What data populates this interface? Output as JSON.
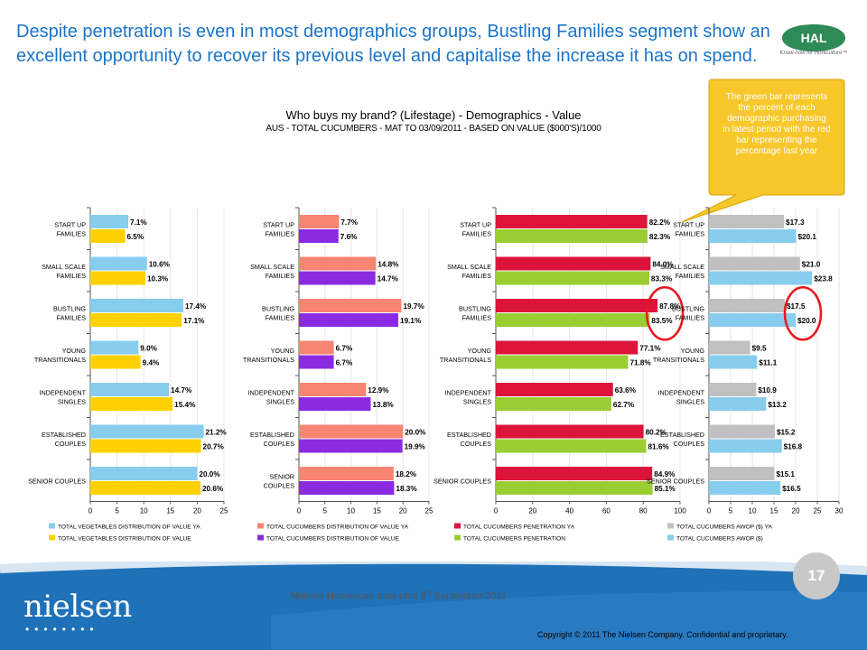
{
  "headline": "Despite penetration is even in most demographics groups, Bustling Families segment show an excellent opportunity to recover its previous level and capitalise the increase it has on spend.",
  "logo": {
    "text": "HAL",
    "tagline": "Know-how for Horticulture™",
    "color": "#2e8a57"
  },
  "callout": "The green bar represents the percent of each demographic purchasing in latest period with the red bar representing the percentage last year",
  "footer": {
    "source_note": "Nielsen Homescan data until 3",
    "source_sup": "rd",
    "source_tail": " September 2011",
    "page_number": "17",
    "brand": "nielsen",
    "copyright": "Copyright © 2011 The Nielsen Company. Confidential and proprietary."
  },
  "colors": {
    "footer_blue": "#1f71b8",
    "headline_blue": "#1a74c8",
    "callout_yellow": "#f7c72b",
    "highlight_circle": "#e8161d"
  },
  "chart_data": {
    "title": "Who buys my brand? (Lifestage) - Demographics - Value",
    "subtitle": "AUS - TOTAL CUCUMBERS - MAT TO 03/09/2011 - BASED ON VALUE ($000'S)/1000",
    "panels": [
      {
        "type": "bar",
        "orientation": "horizontal",
        "categories": [
          "START UP FAMILIES",
          "SMALL SCALE FAMILIES",
          "BUSTLING FAMILIES",
          "YOUNG TRANSITIONALS",
          "INDEPENDENT SINGLES",
          "ESTABLISHED COUPLES",
          "SENIOR COUPLES"
        ],
        "xlim": [
          0,
          25
        ],
        "ticks": [
          0,
          5,
          10,
          15,
          20,
          25
        ],
        "label_format": "{v}%",
        "decimals": 1,
        "series": [
          {
            "name": "TOTAL VEGETABLES DISTRIBUTION OF VALUE YA",
            "color": "#87cdee",
            "values": [
              7.1,
              10.6,
              17.4,
              9.0,
              14.7,
              21.2,
              20.0
            ]
          },
          {
            "name": "TOTAL VEGETABLES DISTRIBUTION OF VALUE",
            "color": "#ffd100",
            "values": [
              6.5,
              10.3,
              17.1,
              9.4,
              15.4,
              20.7,
              20.6
            ]
          }
        ]
      },
      {
        "type": "bar",
        "orientation": "horizontal",
        "categories": [
          "START UP FAMILIES",
          "SMALL SCALE FAMILIES",
          "BUSTLING FAMILIES",
          "YOUNG TRANSITIONALS",
          "INDEPENDENT SINGLES",
          "ESTABLISHED COUPLES",
          "SENIOR COUPLES"
        ],
        "xlim": [
          0,
          25
        ],
        "ticks": [
          0,
          5,
          10,
          15,
          20,
          25
        ],
        "label_format": "{v}%",
        "decimals": 1,
        "series": [
          {
            "name": "TOTAL CUCUMBERS DISTRIBUTION OF VALUE YA",
            "color": "#f88472",
            "values": [
              7.7,
              14.8,
              19.7,
              6.7,
              12.9,
              20.0,
              18.2
            ]
          },
          {
            "name": "TOTAL CUCUMBERS DISTRIBUTION OF VALUE",
            "color": "#8a2be2",
            "values": [
              7.6,
              14.7,
              19.1,
              6.7,
              13.8,
              19.9,
              18.3
            ]
          }
        ]
      },
      {
        "type": "bar",
        "orientation": "horizontal",
        "categories": [
          "START UP FAMILIES",
          "SMALL SCALE FAMILIES",
          "BUSTLING FAMILIES",
          "YOUNG TRANSITIONALS",
          "INDEPENDENT SINGLES",
          "ESTABLISHED COUPLES",
          "SENIOR COUPLES"
        ],
        "xlim": [
          0,
          100
        ],
        "ticks": [
          0,
          20,
          40,
          60,
          80,
          100
        ],
        "label_format": "{v}%",
        "decimals": 1,
        "highlight": "BUSTLING FAMILIES",
        "series": [
          {
            "name": "TOTAL CUCUMBERS PENETRATION YA",
            "color": "#dc143c",
            "values": [
              82.2,
              84.0,
              87.8,
              77.1,
              63.6,
              80.2,
              84.9
            ]
          },
          {
            "name": "TOTAL CUCUMBERS PENETRATION",
            "color": "#9acd32",
            "values": [
              82.3,
              83.3,
              83.5,
              71.8,
              62.7,
              81.6,
              85.1
            ]
          }
        ]
      },
      {
        "type": "bar",
        "orientation": "horizontal",
        "categories": [
          "START UP FAMILIES",
          "SMALL SCALE FAMILIES",
          "BUSTLING FAMILIES",
          "YOUNG TRANSITIONALS",
          "INDEPENDENT SINGLES",
          "ESTABLISHED COUPLES",
          "SENIOR COUPLES"
        ],
        "xlim": [
          0,
          30
        ],
        "ticks": [
          0,
          5,
          10,
          15,
          20,
          25,
          30
        ],
        "label_format": "${v}",
        "decimals": 1,
        "highlight": "BUSTLING FAMILIES",
        "series": [
          {
            "name": "TOTAL CUCUMBERS AWOP ($) YA",
            "color": "#c0c0c0",
            "values": [
              17.3,
              21.0,
              17.5,
              9.5,
              10.9,
              15.2,
              15.1
            ]
          },
          {
            "name": "TOTAL CUCUMBERS AWOP ($)",
            "color": "#87cdee",
            "values": [
              20.1,
              23.8,
              20.0,
              11.1,
              13.2,
              16.8,
              16.5
            ]
          }
        ]
      }
    ]
  }
}
